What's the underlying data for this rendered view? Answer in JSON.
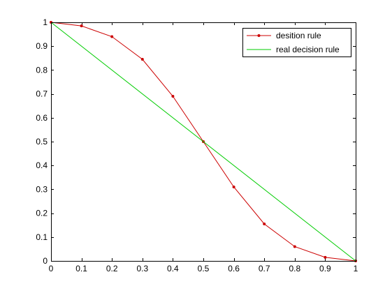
{
  "chart_data": {
    "type": "line",
    "title": "",
    "xlabel": "",
    "ylabel": "",
    "xlim": [
      0,
      1
    ],
    "ylim": [
      0,
      1
    ],
    "xticks": [
      0,
      0.1,
      0.2,
      0.3,
      0.4,
      0.5,
      0.6,
      0.7,
      0.8,
      0.9,
      1
    ],
    "yticks": [
      0,
      0.1,
      0.2,
      0.3,
      0.4,
      0.5,
      0.6,
      0.7,
      0.8,
      0.9,
      1
    ],
    "xtick_labels": [
      "0",
      "0.1",
      "0.2",
      "0.3",
      "0.4",
      "0.5",
      "0.6",
      "0.7",
      "0.8",
      "0.9",
      "1"
    ],
    "ytick_labels": [
      "0",
      "0.1",
      "0.2",
      "0.3",
      "0.4",
      "0.5",
      "0.6",
      "0.7",
      "0.8",
      "0.9",
      "1"
    ],
    "grid": false,
    "legend_position": "top-right",
    "series": [
      {
        "name": "desition rule",
        "color": "#cc0000",
        "marker": "dot",
        "x": [
          0,
          0.1,
          0.2,
          0.3,
          0.4,
          0.5,
          0.6,
          0.7,
          0.8,
          0.9,
          1
        ],
        "y": [
          1,
          0.985,
          0.94,
          0.845,
          0.69,
          0.5,
          0.31,
          0.155,
          0.06,
          0.015,
          0
        ]
      },
      {
        "name": "real decision rule",
        "color": "#00cc00",
        "marker": "none",
        "x": [
          0,
          1
        ],
        "y": [
          1,
          0
        ]
      }
    ]
  }
}
